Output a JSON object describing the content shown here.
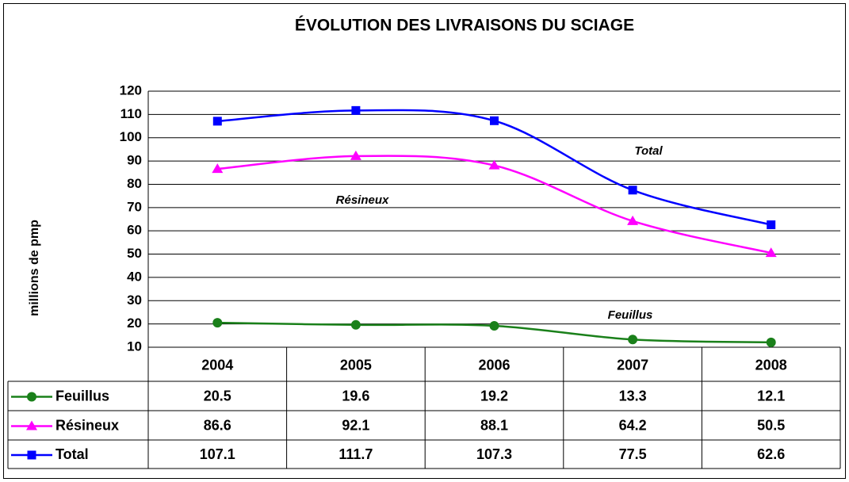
{
  "chart_data": {
    "type": "line",
    "title": "ÉVOLUTION DES LIVRAISONS DU SCIAGE",
    "y_label": "millions de pmp",
    "categories": [
      "2004",
      "2005",
      "2006",
      "2007",
      "2008"
    ],
    "series": [
      {
        "name": "Feuillus",
        "color": "#1a801a",
        "marker": "circle",
        "values": [
          20.5,
          19.6,
          19.2,
          13.3,
          12.1
        ]
      },
      {
        "name": "Résineux",
        "color": "#ff00ff",
        "marker": "triangle",
        "values": [
          86.6,
          92.1,
          88.1,
          64.2,
          50.5
        ]
      },
      {
        "name": "Total",
        "color": "#0000ff",
        "marker": "square",
        "values": [
          107.1,
          111.7,
          107.3,
          77.5,
          62.6
        ]
      }
    ],
    "annotations": [
      "Total",
      "Résineux",
      "Feuillus"
    ],
    "ylim": [
      10,
      120
    ],
    "yticks": [
      10,
      20,
      30,
      40,
      50,
      60,
      70,
      80,
      90,
      100,
      110,
      120
    ],
    "grid": true
  }
}
